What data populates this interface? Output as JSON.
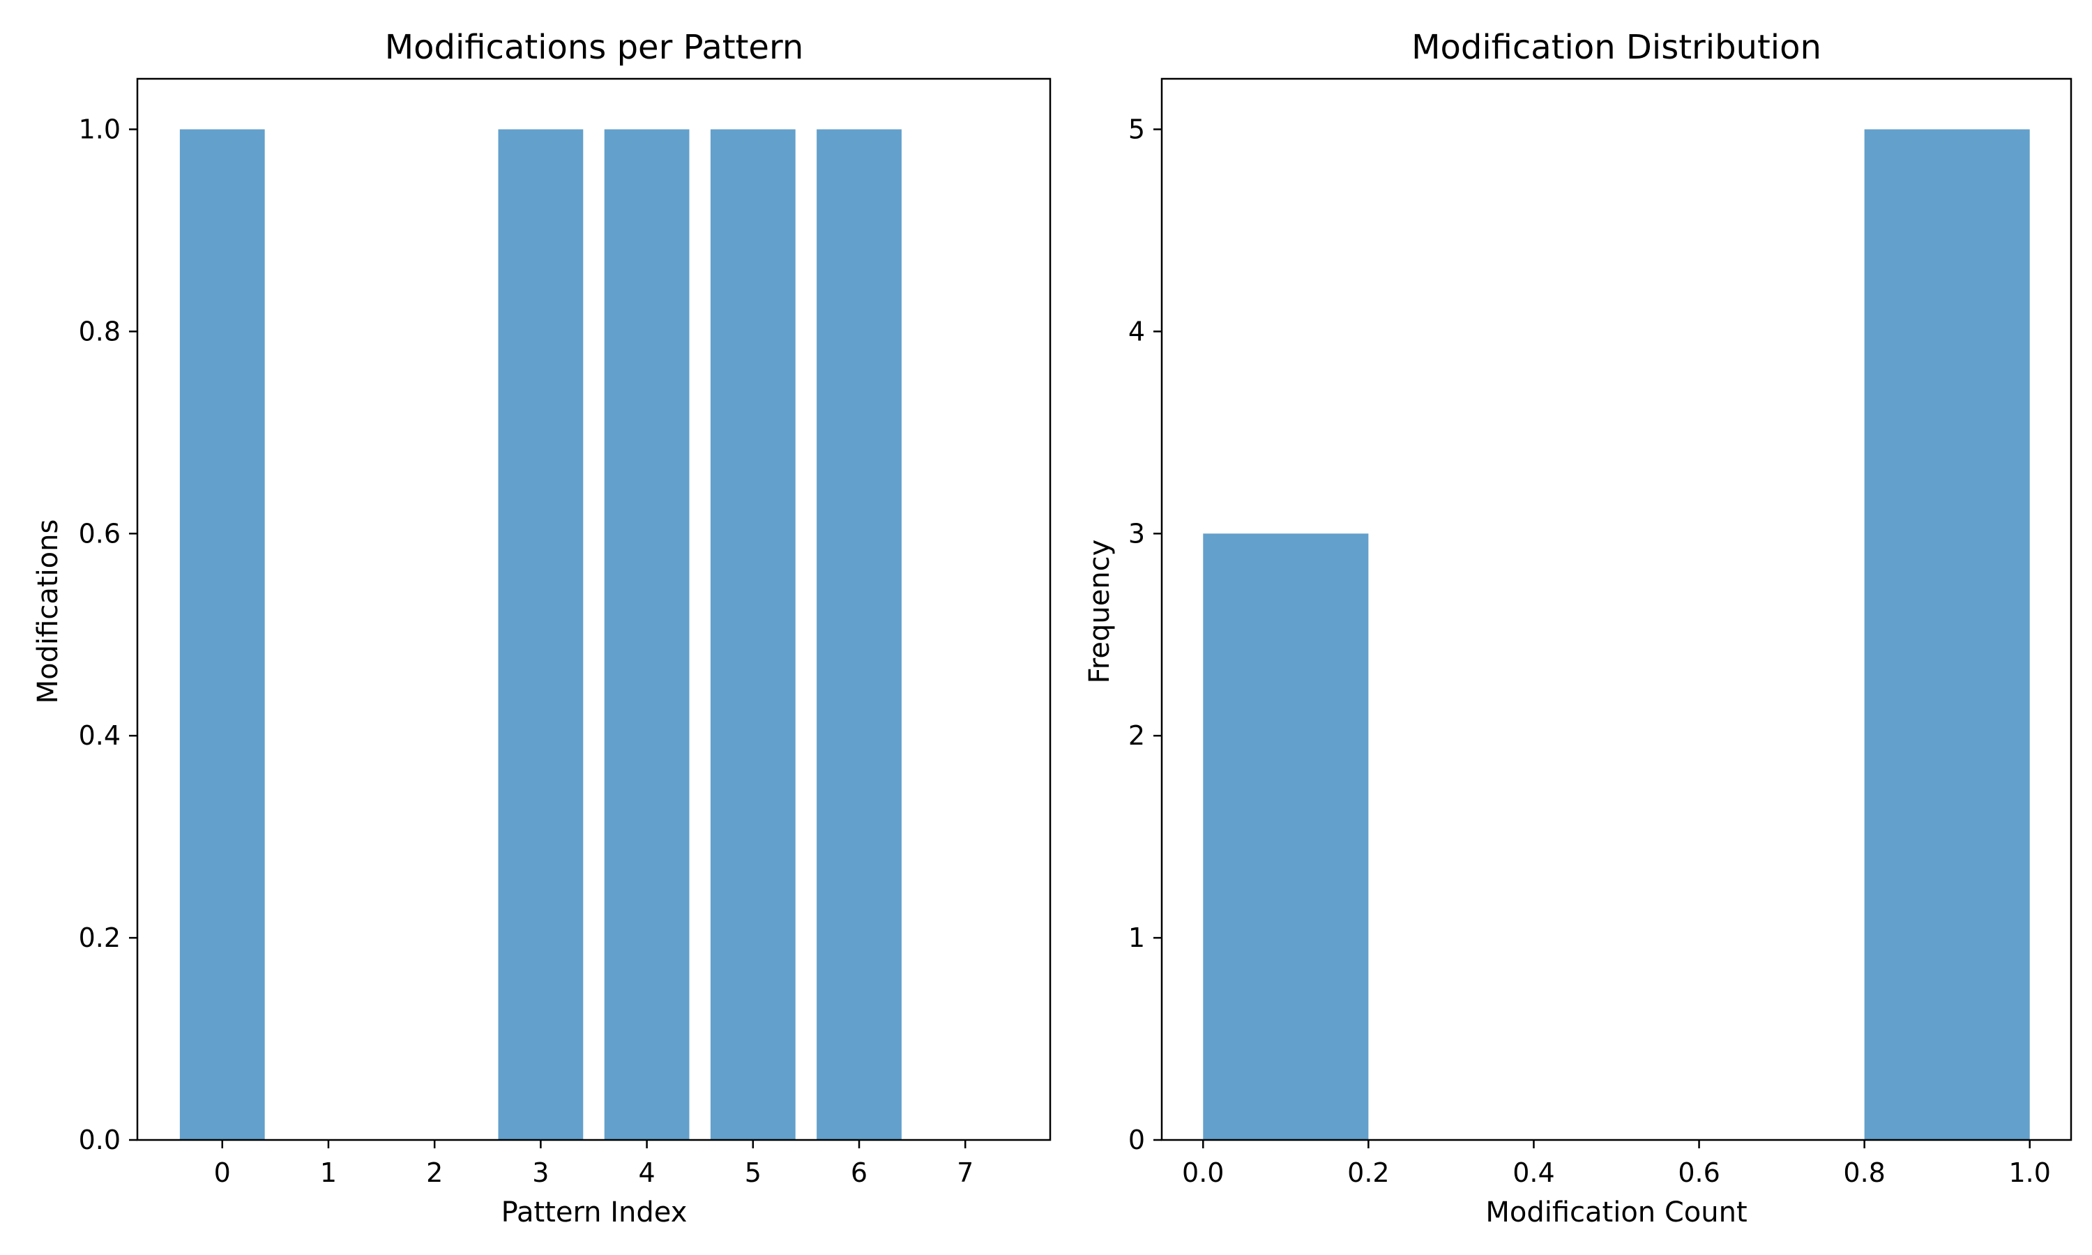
{
  "chart_data": [
    {
      "type": "bar",
      "title": "Modifications per Pattern",
      "xlabel": "Pattern Index",
      "ylabel": "Modifications",
      "categories": [
        "0",
        "1",
        "2",
        "3",
        "4",
        "5",
        "6",
        "7"
      ],
      "values": [
        1,
        0,
        0,
        1,
        1,
        1,
        1,
        0
      ],
      "xlim": [
        -0.8,
        7.8
      ],
      "ylim": [
        0,
        1.05
      ],
      "xticks": [
        "0",
        "1",
        "2",
        "3",
        "4",
        "5",
        "6",
        "7"
      ],
      "yticks": [
        "0.0",
        "0.2",
        "0.4",
        "0.6",
        "0.8",
        "1.0"
      ],
      "bar_color": "#63a0cb",
      "grid": false
    },
    {
      "type": "histogram",
      "title": "Modification Distribution",
      "xlabel": "Modification Count",
      "ylabel": "Frequency",
      "bins": [
        [
          0.0,
          0.2
        ],
        [
          0.2,
          0.4
        ],
        [
          0.4,
          0.6
        ],
        [
          0.6,
          0.8
        ],
        [
          0.8,
          1.0
        ]
      ],
      "counts": [
        3,
        0,
        0,
        0,
        5
      ],
      "xlim": [
        -0.05,
        1.05
      ],
      "ylim": [
        0,
        5.25
      ],
      "xticks": [
        "0.0",
        "0.2",
        "0.4",
        "0.6",
        "0.8",
        "1.0"
      ],
      "yticks": [
        "0",
        "1",
        "2",
        "3",
        "4",
        "5"
      ],
      "bar_color": "#63a0cb",
      "grid": false
    }
  ]
}
